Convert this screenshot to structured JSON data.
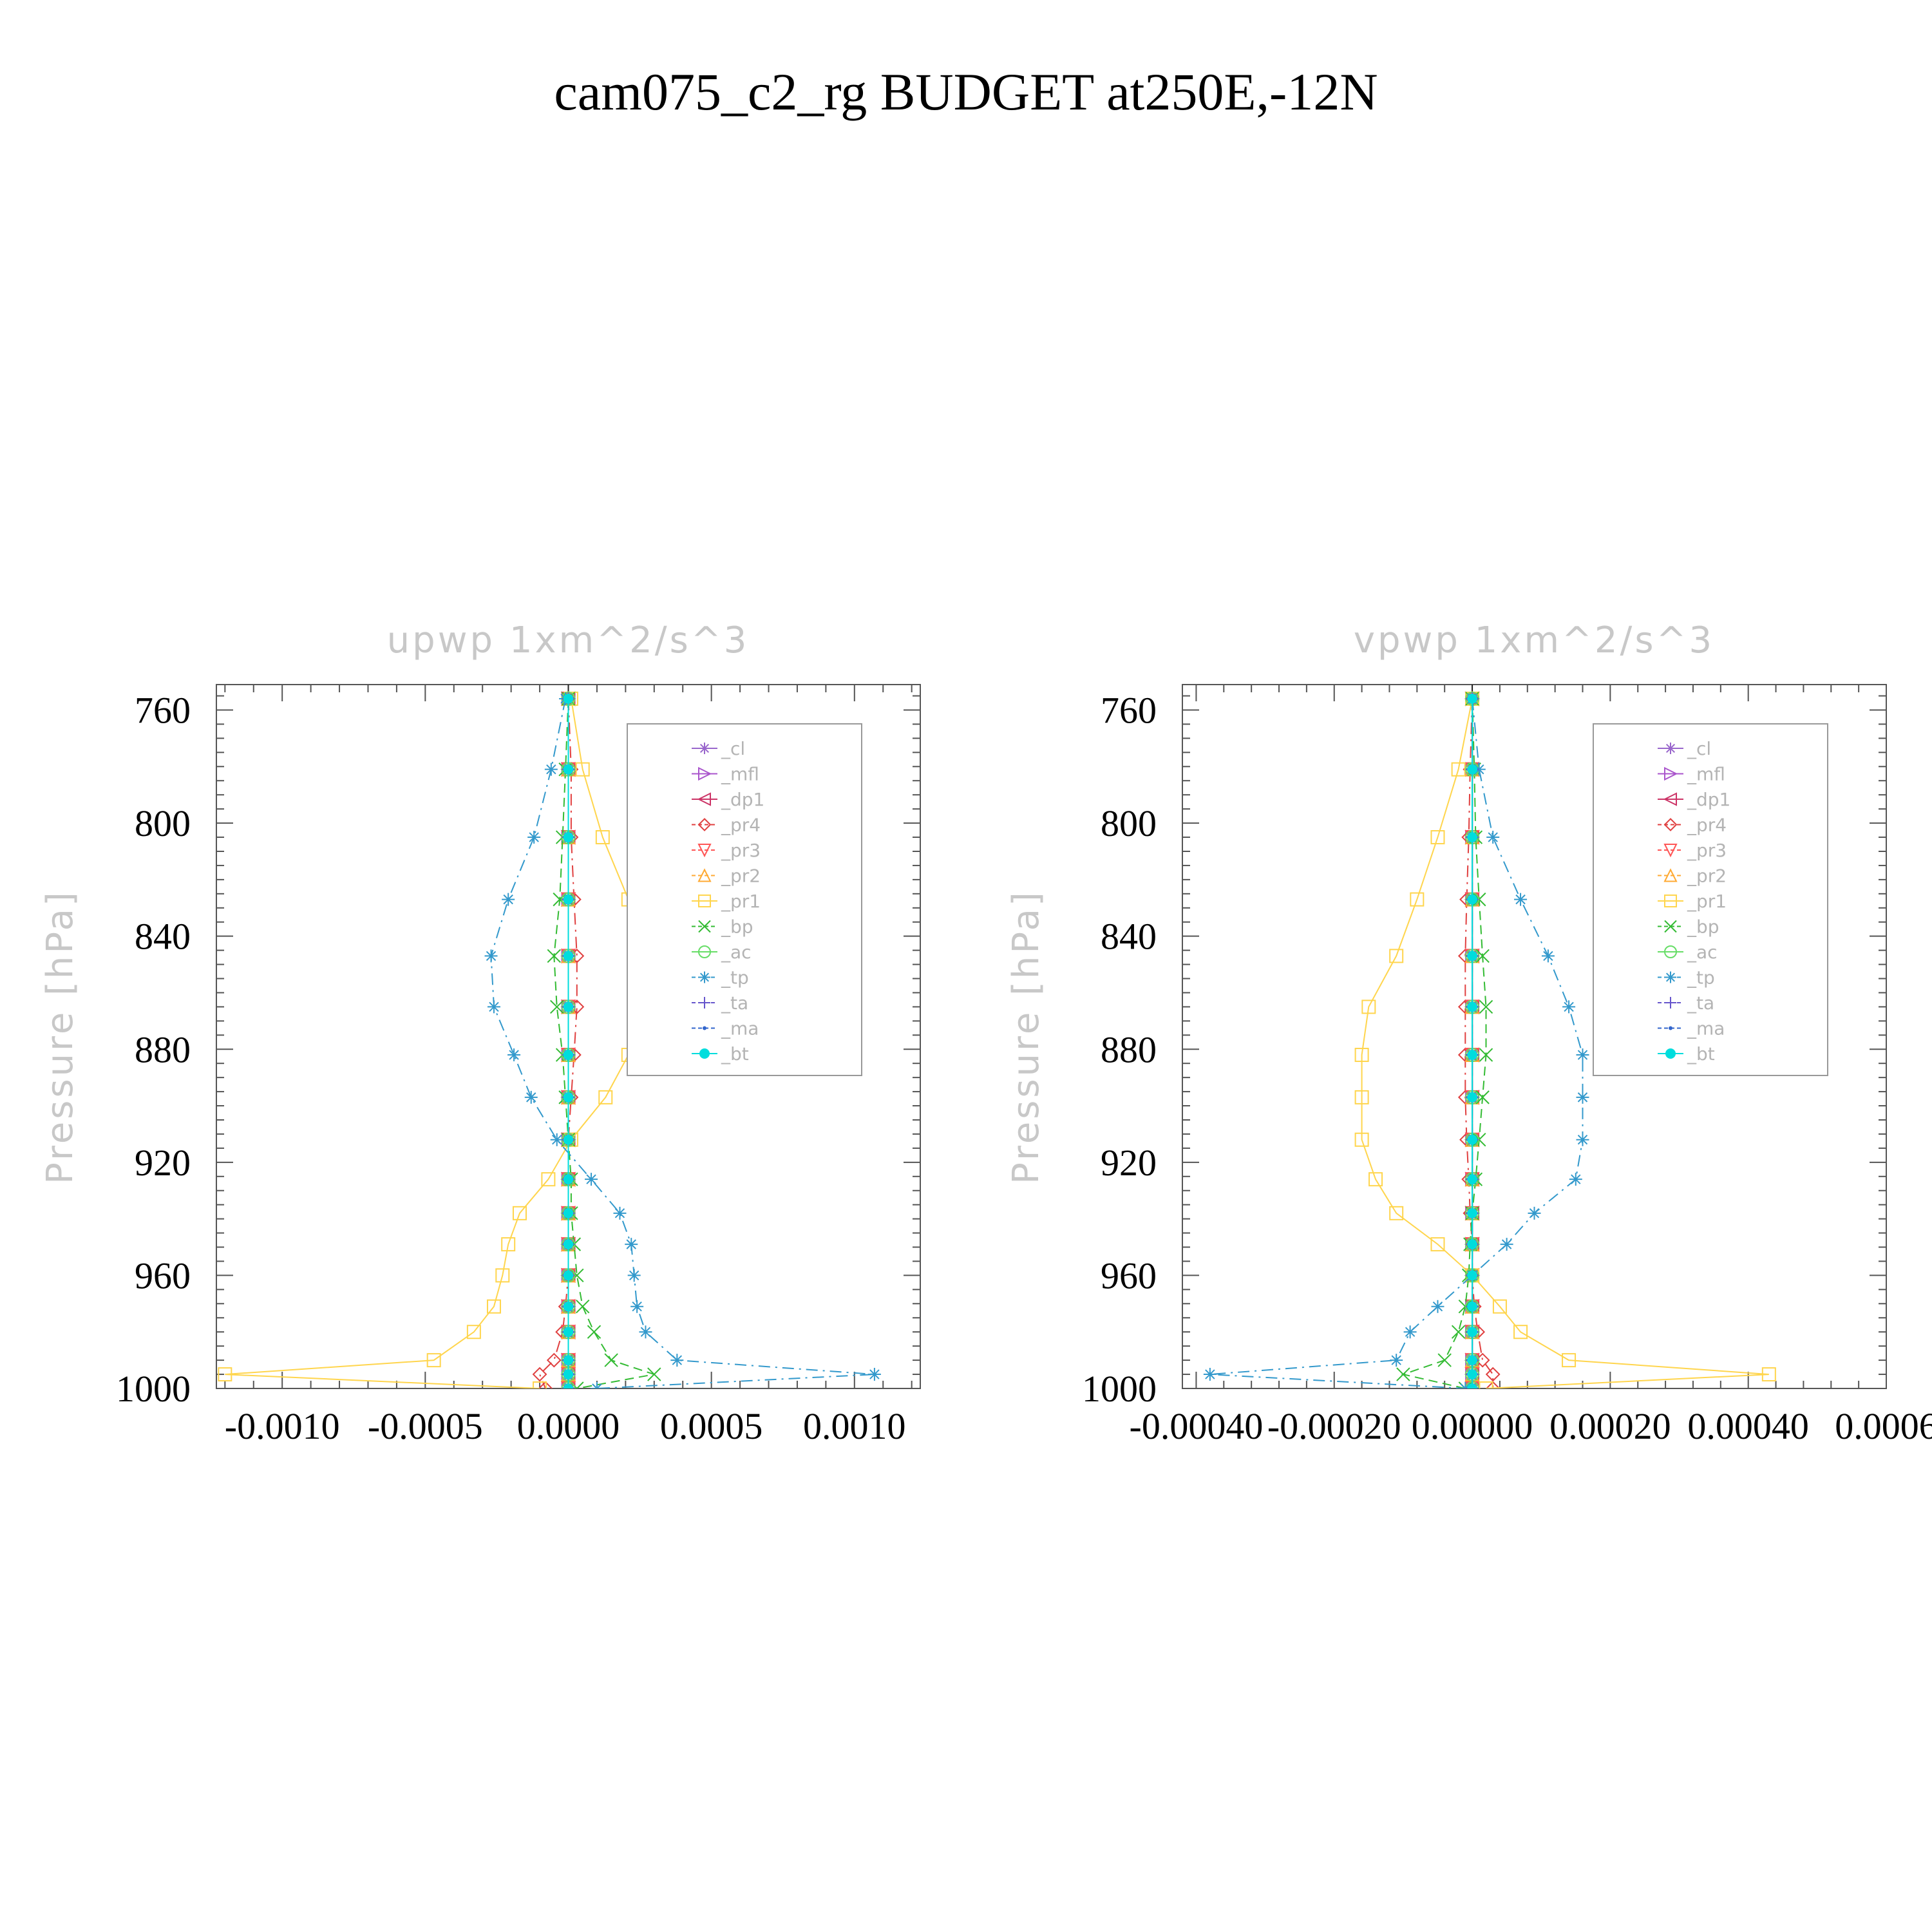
{
  "title": "cam075_c2_rg  BUDGET at250E,-12N",
  "chart_data": [
    {
      "type": "line",
      "title": "upwp    1xm^2/s^3",
      "ylabel": "Pressure  [hPa]",
      "xlabel": "",
      "xlim": [
        -0.00123,
        0.00123
      ],
      "ylim": [
        1000,
        751
      ],
      "y_inverted": true,
      "xticks": [
        -0.001,
        -0.0005,
        0.0,
        0.0005,
        0.001
      ],
      "xtick_labels": [
        "-0.0010",
        "-0.0005",
        "0.0000",
        "0.0005",
        "0.0010"
      ],
      "yticks": [
        760,
        800,
        840,
        880,
        920,
        960,
        1000
      ],
      "ytick_labels": [
        "760",
        "800",
        "840",
        "880",
        "920",
        "960",
        "1000"
      ],
      "legend_placement": "upper-right",
      "legend": [
        "_cl",
        "_mfl",
        "_dp1",
        "_pr4",
        "_pr3",
        "_pr2",
        "_pr1",
        "_bp",
        "_ac",
        "_tp",
        "_ta",
        "_ma",
        "_bt"
      ],
      "y": [
        756,
        781,
        805,
        827,
        847,
        865,
        882,
        897,
        912,
        926,
        938,
        949,
        960,
        971,
        980,
        990,
        995,
        1000
      ],
      "series": [
        {
          "name": "_cl",
          "color": "#9966cc",
          "marker": "star",
          "dash": "solid",
          "values": [
            0,
            0,
            0,
            0,
            0,
            0,
            0,
            0,
            0,
            0,
            0,
            0,
            0,
            0,
            0,
            0,
            0,
            0
          ]
        },
        {
          "name": "_mfl",
          "color": "#aa55cc",
          "marker": "tri-right",
          "dash": "solid",
          "values": [
            0,
            0,
            0,
            0,
            0,
            0,
            0,
            0,
            0,
            0,
            0,
            0,
            0,
            0,
            0,
            0,
            0,
            0
          ]
        },
        {
          "name": "_dp1",
          "color": "#cc3366",
          "marker": "tri-left",
          "dash": "solid",
          "values": [
            0,
            0,
            0,
            0,
            0,
            0,
            0,
            0,
            0,
            0,
            0,
            0,
            0,
            0,
            0,
            0,
            0,
            0
          ]
        },
        {
          "name": "_pr4",
          "color": "#e04040",
          "marker": "diamond",
          "dash": "dashdot",
          "values": [
            0,
            1e-05,
            1e-05,
            2e-05,
            3e-05,
            3e-05,
            2e-05,
            1e-05,
            0,
            0,
            0,
            0,
            0,
            -1e-05,
            -2e-05,
            -5e-05,
            -0.0001,
            -8e-05
          ]
        },
        {
          "name": "_pr3",
          "color": "#ff5555",
          "marker": "tri-down",
          "dash": "dashed",
          "values": [
            0,
            0,
            0,
            0,
            0,
            0,
            0,
            0,
            0,
            0,
            0,
            0,
            0,
            0,
            0,
            0,
            0,
            0
          ]
        },
        {
          "name": "_pr2",
          "color": "#ffaa33",
          "marker": "tri-up",
          "dash": "dashed",
          "values": [
            0,
            0,
            0,
            0,
            0,
            0,
            0,
            0,
            0,
            0,
            0,
            0,
            0,
            0,
            0,
            0,
            0,
            0
          ]
        },
        {
          "name": "_pr1",
          "color": "#ffd54d",
          "marker": "square",
          "dash": "solid",
          "values": [
            1e-05,
            5e-05,
            0.00012,
            0.00021,
            0.00028,
            0.00027,
            0.00021,
            0.00013,
            1e-05,
            -7e-05,
            -0.00017,
            -0.00021,
            -0.00023,
            -0.00026,
            -0.00033,
            -0.00047,
            -0.0012,
            -0.0001
          ]
        },
        {
          "name": "_bp",
          "color": "#33bb33",
          "marker": "x",
          "dash": "dashed",
          "values": [
            0,
            -1e-05,
            -2e-05,
            -3e-05,
            -5e-05,
            -4e-05,
            -2e-05,
            -1e-05,
            0,
            1e-05,
            1e-05,
            2e-05,
            3e-05,
            5e-05,
            9e-05,
            0.00015,
            0.0003,
            3e-05
          ]
        },
        {
          "name": "_ac",
          "color": "#66dd66",
          "marker": "circle",
          "dash": "solid",
          "values": [
            0,
            0,
            0,
            0,
            0,
            0,
            0,
            0,
            0,
            0,
            0,
            0,
            0,
            0,
            0,
            0,
            0,
            0
          ]
        },
        {
          "name": "_tp",
          "color": "#3399cc",
          "marker": "star",
          "dash": "dashdot",
          "values": [
            -1e-05,
            -6e-05,
            -0.00012,
            -0.00021,
            -0.00027,
            -0.00026,
            -0.00019,
            -0.00013,
            -4e-05,
            8e-05,
            0.00018,
            0.00022,
            0.00023,
            0.00024,
            0.00027,
            0.00038,
            0.00107,
            0.0001
          ]
        },
        {
          "name": "_ta",
          "color": "#6655cc",
          "marker": "plus",
          "dash": "dashed",
          "values": [
            0,
            0,
            0,
            0,
            0,
            0,
            0,
            0,
            0,
            0,
            0,
            0,
            0,
            0,
            0,
            0,
            0,
            0
          ]
        },
        {
          "name": "_ma",
          "color": "#3366cc",
          "marker": "dot",
          "dash": "dashdot",
          "values": [
            0,
            0,
            0,
            0,
            0,
            0,
            0,
            0,
            0,
            0,
            0,
            0,
            0,
            0,
            0,
            0,
            0,
            0
          ]
        },
        {
          "name": "_bt",
          "color": "#00dddd",
          "marker": "bigdot",
          "dash": "solid",
          "values": [
            0,
            0,
            0,
            0,
            0,
            0,
            0,
            0,
            0,
            0,
            0,
            0,
            0,
            0,
            0,
            0,
            0,
            0
          ]
        }
      ]
    },
    {
      "type": "line",
      "title": "vpwp    1xm^2/s^3",
      "ylabel": "Pressure  [hPa]",
      "xlabel": "",
      "xlim": [
        -0.00042,
        0.0006
      ],
      "ylim": [
        1000,
        751
      ],
      "y_inverted": true,
      "xticks": [
        -0.0004,
        -0.0002,
        0.0,
        0.0002,
        0.0004,
        0.0006
      ],
      "xtick_labels": [
        "-0.00040",
        "-0.00020",
        "0.00000",
        "0.00020",
        "0.00040",
        "0.0006"
      ],
      "yticks": [
        760,
        800,
        840,
        880,
        920,
        960,
        1000
      ],
      "ytick_labels": [
        "760",
        "800",
        "840",
        "880",
        "920",
        "960",
        "1000"
      ],
      "legend_placement": "upper-right",
      "legend": [
        "_cl",
        "_mfl",
        "_dp1",
        "_pr4",
        "_pr3",
        "_pr2",
        "_pr1",
        "_bp",
        "_ac",
        "_tp",
        "_ta",
        "_ma",
        "_bt"
      ],
      "y": [
        756,
        781,
        805,
        827,
        847,
        865,
        882,
        897,
        912,
        926,
        938,
        949,
        960,
        971,
        980,
        990,
        995,
        1000
      ],
      "series": [
        {
          "name": "_cl",
          "color": "#9966cc",
          "marker": "star",
          "dash": "solid",
          "values": [
            0,
            0,
            0,
            0,
            0,
            0,
            0,
            0,
            0,
            0,
            0,
            0,
            0,
            0,
            0,
            0,
            0,
            0
          ]
        },
        {
          "name": "_mfl",
          "color": "#aa55cc",
          "marker": "tri-right",
          "dash": "solid",
          "values": [
            0,
            0,
            0,
            0,
            0,
            0,
            0,
            0,
            0,
            0,
            0,
            0,
            0,
            0,
            0,
            0,
            0,
            0
          ]
        },
        {
          "name": "_dp1",
          "color": "#cc3366",
          "marker": "tri-left",
          "dash": "solid",
          "values": [
            0,
            0,
            0,
            0,
            0,
            0,
            0,
            0,
            0,
            0,
            0,
            0,
            0,
            0,
            0,
            0,
            0,
            0
          ]
        },
        {
          "name": "_pr4",
          "color": "#e04040",
          "marker": "diamond",
          "dash": "dashdot",
          "values": [
            0,
            -3e-06,
            -5e-06,
            -8e-06,
            -1e-05,
            -1e-05,
            -1e-05,
            -1e-05,
            -8e-06,
            -5e-06,
            -3e-06,
            0,
            0,
            3e-06,
            8e-06,
            1.5e-05,
            3e-05,
            3e-05
          ]
        },
        {
          "name": "_pr3",
          "color": "#ff5555",
          "marker": "tri-down",
          "dash": "dashed",
          "values": [
            0,
            0,
            0,
            0,
            0,
            0,
            0,
            0,
            0,
            0,
            0,
            0,
            0,
            0,
            0,
            0,
            0,
            0
          ]
        },
        {
          "name": "_pr2",
          "color": "#ffaa33",
          "marker": "tri-up",
          "dash": "dashed",
          "values": [
            0,
            0,
            0,
            0,
            0,
            0,
            0,
            0,
            0,
            0,
            0,
            0,
            0,
            0,
            0,
            0,
            0,
            0
          ]
        },
        {
          "name": "_pr1",
          "color": "#ffd54d",
          "marker": "square",
          "dash": "solid",
          "values": [
            0,
            -2e-05,
            -5e-05,
            -8e-05,
            -0.00011,
            -0.00015,
            -0.00016,
            -0.00016,
            -0.00016,
            -0.00014,
            -0.00011,
            -5e-05,
            0,
            4e-05,
            7e-05,
            0.00014,
            0.00043,
            2e-05
          ]
        },
        {
          "name": "_bp",
          "color": "#33bb33",
          "marker": "x",
          "dash": "dashed",
          "values": [
            0,
            3e-06,
            5e-06,
            1e-05,
            1.5e-05,
            2e-05,
            2e-05,
            1.5e-05,
            1e-05,
            5e-06,
            0,
            -3e-06,
            -5e-06,
            -1e-05,
            -2e-05,
            -4e-05,
            -0.0001,
            -1e-05
          ]
        },
        {
          "name": "_ac",
          "color": "#66dd66",
          "marker": "circle",
          "dash": "solid",
          "values": [
            0,
            0,
            0,
            0,
            0,
            0,
            0,
            0,
            0,
            0,
            0,
            0,
            0,
            0,
            0,
            0,
            0,
            0
          ]
        },
        {
          "name": "_tp",
          "color": "#3399cc",
          "marker": "star",
          "dash": "dashdot",
          "values": [
            0,
            1e-05,
            3e-05,
            7e-05,
            0.00011,
            0.00014,
            0.00016,
            0.00016,
            0.00016,
            0.00015,
            9e-05,
            5e-05,
            0,
            -5e-05,
            -9e-05,
            -0.00011,
            -0.00038,
            -1e-05
          ]
        },
        {
          "name": "_ta",
          "color": "#6655cc",
          "marker": "plus",
          "dash": "dashed",
          "values": [
            0,
            0,
            0,
            0,
            0,
            0,
            0,
            0,
            0,
            0,
            0,
            0,
            0,
            0,
            0,
            0,
            0,
            0
          ]
        },
        {
          "name": "_ma",
          "color": "#3366cc",
          "marker": "dot",
          "dash": "dashdot",
          "values": [
            0,
            0,
            0,
            0,
            0,
            0,
            0,
            0,
            0,
            0,
            0,
            0,
            0,
            0,
            0,
            0,
            0,
            0
          ]
        },
        {
          "name": "_bt",
          "color": "#00dddd",
          "marker": "bigdot",
          "dash": "solid",
          "values": [
            0,
            0,
            0,
            0,
            0,
            0,
            0,
            0,
            0,
            0,
            0,
            0,
            0,
            0,
            0,
            0,
            0,
            0
          ]
        }
      ]
    }
  ]
}
